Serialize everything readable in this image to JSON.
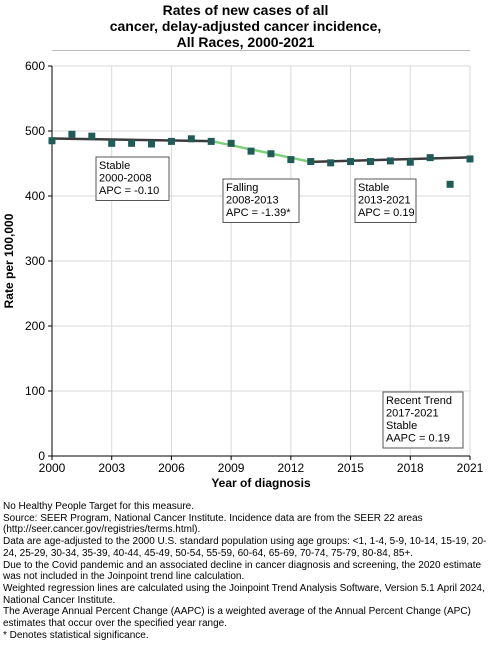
{
  "title_lines": [
    "Rates of new cases of all",
    "cancer, delay-adjusted cancer incidence,",
    "All Races,  2000-2021"
  ],
  "chart_data": {
    "type": "scatter",
    "title": "Rates of new cases of all cancer, delay-adjusted cancer incidence, All Races, 2000-2021",
    "xlabel": "Year of diagnosis",
    "ylabel": "Rate per 100,000",
    "xlim": [
      2000,
      2021
    ],
    "ylim": [
      0,
      600
    ],
    "x_ticks": [
      "2000",
      "2003",
      "2006",
      "2009",
      "2012",
      "2015",
      "2018",
      "2021"
    ],
    "y_ticks": [
      "0",
      "100",
      "200",
      "300",
      "400",
      "500",
      "600"
    ],
    "grid": true,
    "observed": {
      "x": [
        2000,
        2001,
        2002,
        2003,
        2004,
        2005,
        2006,
        2007,
        2008,
        2009,
        2010,
        2011,
        2012,
        2013,
        2014,
        2015,
        2016,
        2017,
        2018,
        2019,
        2020,
        2021
      ],
      "y": [
        485,
        495,
        492,
        481,
        481,
        480,
        484,
        488,
        484,
        481,
        469,
        465,
        456,
        453,
        451,
        453,
        453,
        454,
        452,
        459,
        418,
        457
      ],
      "color": "#1f5c58"
    },
    "trend_segments": [
      {
        "x": [
          2000,
          2008
        ],
        "y": [
          488.5,
          484.5
        ],
        "color": "#3b3b3b",
        "label_lines": [
          "Stable",
          "2000-2008",
          "APC = -0.10"
        ]
      },
      {
        "x": [
          2008,
          2013
        ],
        "y": [
          484.5,
          452.5
        ],
        "color": "#7fd07a",
        "label_lines": [
          "Falling",
          "2008-2013",
          "APC = -1.39*"
        ]
      },
      {
        "x": [
          2013,
          2021
        ],
        "y": [
          452.5,
          459.5
        ],
        "color": "#3b3b3b",
        "label_lines": [
          "Stable",
          "2013-2021",
          "APC =  0.19"
        ]
      }
    ],
    "recent_trend_lines": [
      "Recent Trend",
      "2017-2021",
      "Stable",
      "AAPC =  0.19"
    ]
  },
  "footnotes": [
    "No Healthy People Target for this measure.",
    "Source: SEER Program, National Cancer Institute. Incidence data are from the SEER 22 areas (http://seer.cancer.gov/registries/terms.html).",
    "Data are age-adjusted to the 2000 U.S. standard population using age groups: <1, 1-4, 5-9, 10-14, 15-19, 20-24, 25-29, 30-34, 35-39, 40-44, 45-49, 50-54, 55-59, 60-64, 65-69, 70-74, 75-79, 80-84, 85+.",
    "Due to the Covid pandemic and an associated decline in cancer diagnosis and screening, the 2020 estimate was not included in the Joinpoint trend line calculation.",
    "Weighted regression lines are calculated using the Joinpoint Trend Analysis Software, Version 5.1 April 2024, National Cancer Institute.",
    "The Average Annual Percent Change (AAPC) is a weighted average of the Annual Percent Change (APC) estimates that occur over the specified year range.",
    "* Denotes statistical significance."
  ]
}
